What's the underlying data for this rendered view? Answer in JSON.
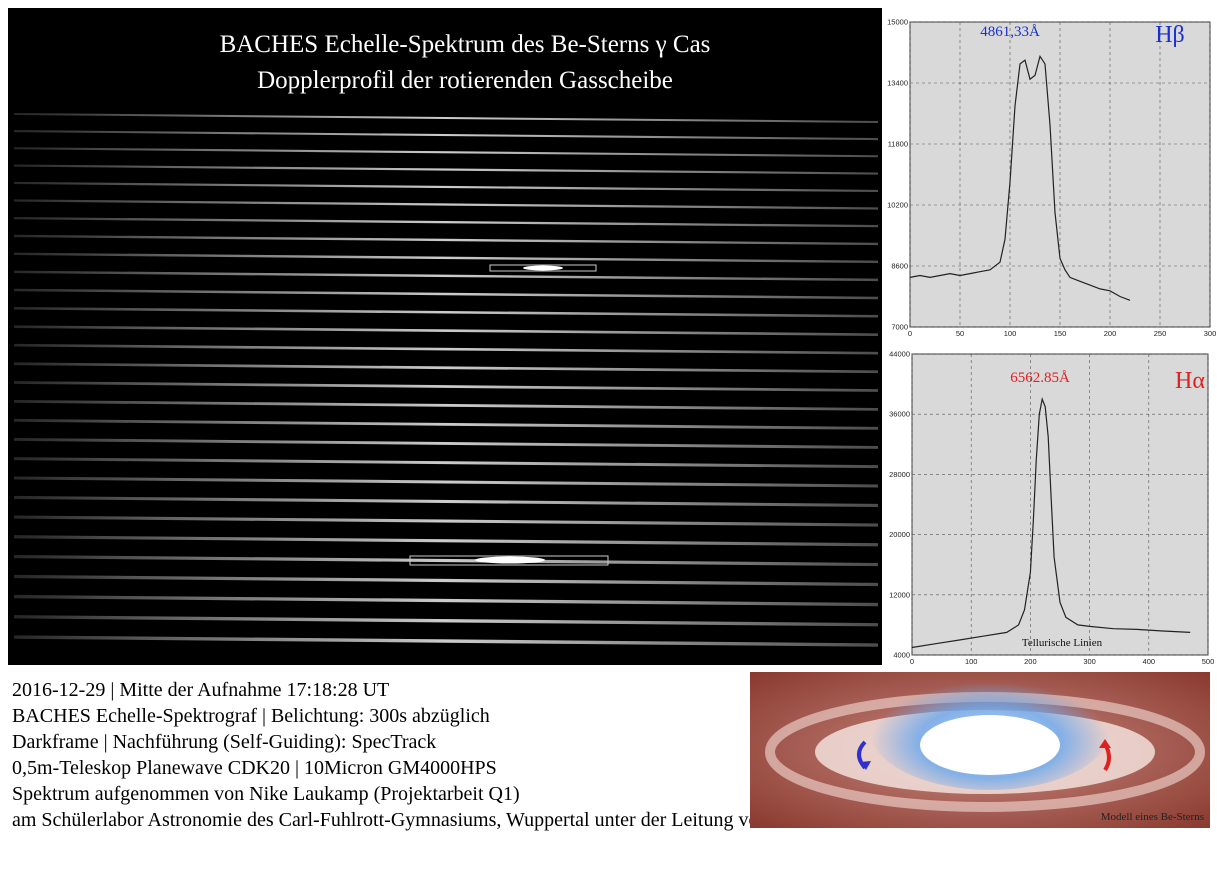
{
  "title": [
    "BACHES  Echelle-Spektrum des Be-Sterns γ Cas",
    "Dopplerprofil der rotierenden Gasscheibe"
  ],
  "chart_data": [
    {
      "type": "line",
      "label": "Hβ",
      "annotation": "4861,33Å",
      "label_color": "#1a2fd0",
      "color": "#222222",
      "x": [
        0,
        10,
        20,
        30,
        40,
        50,
        60,
        70,
        80,
        90,
        95,
        100,
        105,
        110,
        115,
        120,
        125,
        130,
        135,
        140,
        145,
        150,
        155,
        160,
        170,
        180,
        190,
        200,
        210,
        220
      ],
      "values": [
        8300,
        8350,
        8300,
        8350,
        8400,
        8350,
        8400,
        8450,
        8500,
        8700,
        9300,
        10800,
        12800,
        13900,
        14000,
        13500,
        13600,
        14100,
        13900,
        12300,
        10000,
        8800,
        8500,
        8300,
        8200,
        8100,
        8000,
        7950,
        7800,
        7700
      ],
      "xlim": [
        0,
        300
      ],
      "ylim": [
        7000,
        15000
      ],
      "xticks": [
        0,
        50,
        100,
        150,
        200,
        250,
        300
      ],
      "yticks": [
        7000,
        8600,
        10200,
        11800,
        13400,
        15000
      ],
      "grid": true
    },
    {
      "type": "line",
      "label": "Hα",
      "annotation": "6562.85Å",
      "note": "Tellurische Linien",
      "label_color": "#e02020",
      "color": "#222222",
      "x": [
        0,
        40,
        80,
        120,
        160,
        180,
        190,
        200,
        205,
        210,
        215,
        220,
        225,
        230,
        235,
        240,
        250,
        260,
        280,
        300,
        340,
        380,
        420,
        470
      ],
      "values": [
        5000,
        5500,
        6000,
        6500,
        7000,
        8000,
        10000,
        15000,
        22000,
        30000,
        36000,
        38000,
        37000,
        33000,
        25000,
        17000,
        11000,
        9000,
        8000,
        7800,
        7500,
        7400,
        7200,
        7000
      ],
      "xlim": [
        0,
        500
      ],
      "ylim": [
        4000,
        44000
      ],
      "xticks": [
        0,
        100,
        200,
        300,
        400,
        500
      ],
      "yticks": [
        4000,
        12000,
        20000,
        28000,
        36000,
        44000
      ],
      "grid": true
    }
  ],
  "caption": [
    "2016-12-29 | Mitte der Aufnahme 17:18:28 UT",
    "BACHES Echelle-Spektrograf | Belichtung: 300s abzüglich",
    "Darkframe | Nachführung (Self-Guiding): SpecTrack",
    "0,5m-Teleskop Planewave CDK20 | 10Micron GM4000HPS",
    "Spektrum aufgenommen von Nike Laukamp (Projektarbeit Q1)",
    "am Schülerlabor Astronomie des Carl-Fuhlrott-Gymnasiums, Wuppertal unter der Leitung von Bernd Koch"
  ],
  "illustration_label": "Modell eines Be-Sterns"
}
